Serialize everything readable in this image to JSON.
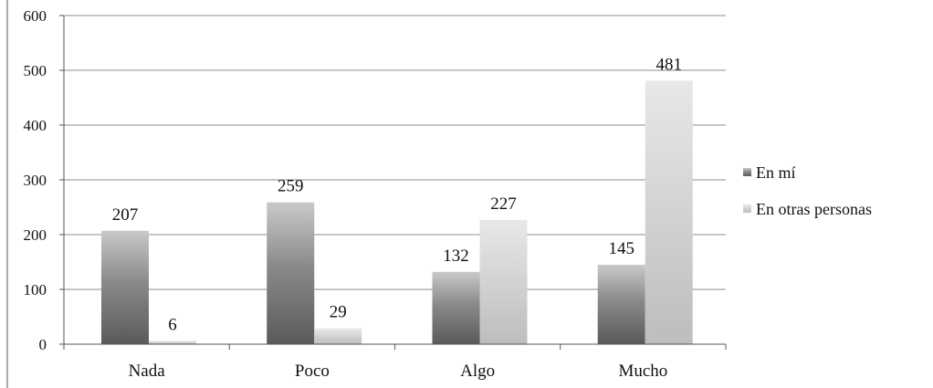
{
  "chart_data": {
    "type": "bar",
    "categories": [
      "Nada",
      "Poco",
      "Algo",
      "Mucho"
    ],
    "series": [
      {
        "name": "En mí",
        "values": [
          207,
          259,
          132,
          145
        ],
        "color": "#6e6e6e"
      },
      {
        "name": "En otras personas",
        "values": [
          6,
          29,
          227,
          481
        ],
        "color": "#d9d9d9"
      }
    ],
    "ylim": [
      0,
      600
    ],
    "yticks": [
      0,
      100,
      200,
      300,
      400,
      500,
      600
    ],
    "grid": true,
    "legend_position": "right",
    "title": "",
    "xlabel": "",
    "ylabel": ""
  }
}
